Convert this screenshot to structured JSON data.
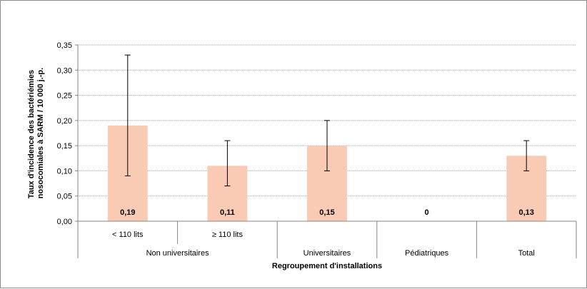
{
  "chart_data": {
    "type": "bar",
    "ylabel": "Taux d'incidence des bactériémies nosocomiales à SARM / 10 000 j.-p.",
    "ylabel_lines": [
      "Taux d'incidence des bactériémies",
      "nosocomiales à SARM / 10 000 j.-p."
    ],
    "xlabel": "Regroupement d'installations",
    "ylim": [
      0,
      0.35
    ],
    "yticks": [
      0,
      0.05,
      0.1,
      0.15,
      0.2,
      0.25,
      0.3,
      0.35
    ],
    "ytick_labels": [
      "0,00",
      "0,05",
      "0,10",
      "0,15",
      "0,20",
      "0,25",
      "0,30",
      "0,35"
    ],
    "grid": true,
    "categories": [
      "< 110 lits",
      "≥ 110 lits",
      "Universitaires",
      "Pédiatriques",
      "Total"
    ],
    "groups": [
      {
        "label": "Non universitaires",
        "span": 2
      },
      {
        "label": "",
        "span": 1
      },
      {
        "label": "",
        "span": 1
      },
      {
        "label": "",
        "span": 1
      }
    ],
    "values": [
      0.19,
      0.11,
      0.15,
      0,
      0.13
    ],
    "value_labels": [
      "0,19",
      "0,11",
      "0,15",
      "0",
      "0,13"
    ],
    "error_low": [
      0.09,
      0.07,
      0.1,
      null,
      0.1
    ],
    "error_high": [
      0.33,
      0.16,
      0.2,
      null,
      0.16
    ],
    "bar_color": "#F9CBB4",
    "grid_color": "#a0a0a0"
  }
}
